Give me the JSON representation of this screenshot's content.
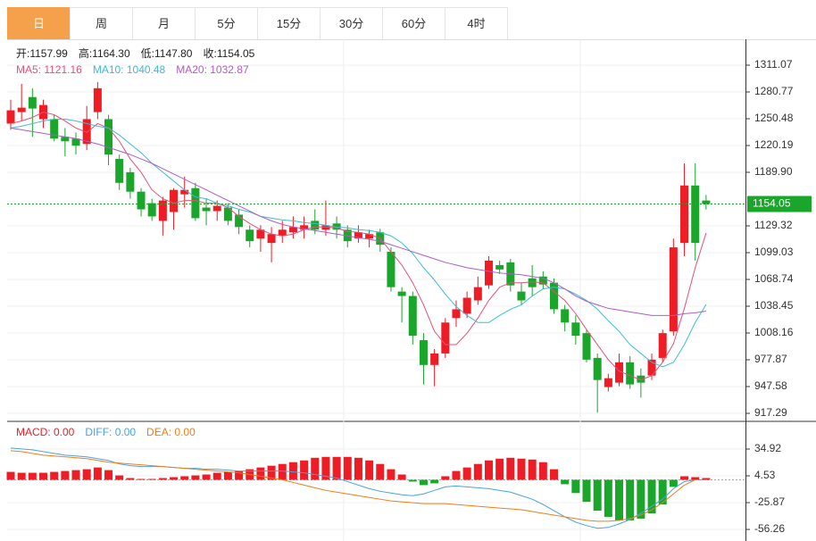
{
  "tabs": [
    "日",
    "周",
    "月",
    "5分",
    "15分",
    "30分",
    "60分",
    "4时"
  ],
  "chart_data": [
    {
      "type": "candlestick",
      "ohlc_labels": [
        {
          "text": "开:1157.99"
        },
        {
          "text": "高:1164.30"
        },
        {
          "text": "低:1147.80"
        },
        {
          "text": "收:1154.05"
        }
      ],
      "up_color": "#ee1c24",
      "down_color": "#19a62b",
      "open": [
        1245,
        1258,
        1275,
        1250,
        1250,
        1230,
        1228,
        1222,
        1258,
        1250,
        1205,
        1190,
        1168,
        1155,
        1135,
        1145,
        1165,
        1172,
        1150,
        1146,
        1150,
        1142,
        1125,
        1115,
        1110,
        1118,
        1122,
        1125,
        1135,
        1125,
        1132,
        1125,
        1115,
        1115,
        1122,
        1100,
        1055,
        1050,
        1000,
        972,
        985,
        1025,
        1030,
        1045,
        1062,
        1085,
        1088,
        1055,
        1070,
        1072,
        1065,
        1035,
        1020,
        1008,
        980,
        947,
        952,
        975,
        960,
        960,
        980,
        1010,
        1110,
        1175,
        1157.99
      ],
      "high": [
        1272,
        1290,
        1285,
        1272,
        1255,
        1240,
        1235,
        1265,
        1292,
        1255,
        1210,
        1195,
        1172,
        1160,
        1162,
        1172,
        1185,
        1178,
        1160,
        1158,
        1155,
        1148,
        1130,
        1130,
        1128,
        1135,
        1140,
        1140,
        1148,
        1158,
        1140,
        1130,
        1130,
        1125,
        1126,
        1105,
        1060,
        1055,
        1008,
        990,
        1025,
        1045,
        1055,
        1072,
        1095,
        1090,
        1092,
        1065,
        1085,
        1078,
        1070,
        1040,
        1028,
        1012,
        985,
        962,
        985,
        982,
        968,
        985,
        1012,
        1115,
        1200,
        1200,
        1164.3
      ],
      "low": [
        1238,
        1248,
        1230,
        1240,
        1225,
        1208,
        1210,
        1215,
        1250,
        1198,
        1170,
        1160,
        1140,
        1135,
        1118,
        1125,
        1150,
        1135,
        1130,
        1135,
        1130,
        1120,
        1105,
        1100,
        1088,
        1110,
        1115,
        1115,
        1120,
        1118,
        1115,
        1105,
        1110,
        1105,
        1100,
        1055,
        1020,
        995,
        950,
        948,
        980,
        1015,
        1025,
        1040,
        1058,
        1075,
        1055,
        1040,
        1050,
        1058,
        1030,
        1010,
        995,
        975,
        918,
        942,
        948,
        945,
        935,
        955,
        975,
        1005,
        1095,
        1090,
        1147.8
      ],
      "close": [
        1260,
        1263,
        1262,
        1266,
        1228,
        1225,
        1220,
        1250,
        1285,
        1210,
        1178,
        1168,
        1148,
        1140,
        1158,
        1170,
        1170,
        1138,
        1146,
        1152,
        1135,
        1128,
        1112,
        1125,
        1120,
        1125,
        1128,
        1130,
        1125,
        1130,
        1125,
        1112,
        1122,
        1120,
        1108,
        1060,
        1050,
        1005,
        972,
        985,
        1020,
        1035,
        1048,
        1060,
        1090,
        1080,
        1062,
        1045,
        1060,
        1063,
        1035,
        1020,
        1005,
        978,
        955,
        957,
        975,
        950,
        952,
        978,
        1008,
        1105,
        1175,
        1110,
        1154.05
      ],
      "series": [
        {
          "name": "MA5: 1121.16",
          "color": "#e5507a",
          "values": [
            1245,
            1248,
            1252,
            1258,
            1255,
            1248,
            1240,
            1235,
            1245,
            1240,
            1225,
            1205,
            1190,
            1170,
            1160,
            1155,
            1158,
            1158,
            1155,
            1155,
            1150,
            1140,
            1132,
            1125,
            1120,
            1118,
            1120,
            1125,
            1128,
            1128,
            1127,
            1123,
            1122,
            1120,
            1115,
            1100,
            1085,
            1065,
            1040,
            1010,
            995,
            995,
            1008,
            1025,
            1045,
            1060,
            1065,
            1065,
            1066,
            1065,
            1055,
            1045,
            1030,
            1012,
            995,
            978,
            965,
            960,
            955,
            960,
            975,
            996,
            1036,
            1082,
            1121.16
          ]
        },
        {
          "name": "MA10: 1040.48",
          "color": "#3bbdd4",
          "values": [
            1240,
            1242,
            1245,
            1248,
            1250,
            1250,
            1248,
            1245,
            1242,
            1240,
            1232,
            1222,
            1212,
            1200,
            1190,
            1180,
            1170,
            1162,
            1160,
            1155,
            1152,
            1148,
            1145,
            1140,
            1138,
            1136,
            1135,
            1133,
            1132,
            1130,
            1128,
            1127,
            1125,
            1124,
            1122,
            1118,
            1110,
            1098,
            1082,
            1068,
            1052,
            1038,
            1028,
            1020,
            1020,
            1028,
            1035,
            1040,
            1050,
            1058,
            1060,
            1058,
            1052,
            1045,
            1035,
            1022,
            1010,
            995,
            985,
            975,
            970,
            975,
            995,
            1020,
            1040.48
          ]
        },
        {
          "name": "MA20: 1032.87",
          "color": "#b05cc5",
          "values": [
            1240,
            1238,
            1236,
            1234,
            1232,
            1230,
            1228,
            1225,
            1222,
            1218,
            1214,
            1210,
            1205,
            1200,
            1194,
            1188,
            1182,
            1176,
            1170,
            1164,
            1158,
            1152,
            1146,
            1140,
            1135,
            1131,
            1128,
            1126,
            1124,
            1122,
            1120,
            1118,
            1116,
            1114,
            1112,
            1108,
            1104,
            1100,
            1096,
            1092,
            1088,
            1085,
            1082,
            1080,
            1078,
            1076,
            1075,
            1074,
            1072,
            1070,
            1065,
            1058,
            1050,
            1044,
            1040,
            1036,
            1034,
            1032,
            1030,
            1028,
            1028,
            1028,
            1030,
            1031,
            1032.87
          ]
        }
      ],
      "ylim": [
        908.2,
        1340.35
      ],
      "yticks": [
        1311.07,
        1280.77,
        1250.48,
        1220.19,
        {
          "value": 1189.9,
          "label": "1189.90"
        },
        1129.32,
        1099.03,
        1068.74,
        1038.45,
        1008.16,
        977.87,
        947.58,
        917.29
      ],
      "grid": true
    },
    {
      "type": "macd",
      "histogram": {
        "name": "MACD: 0.00",
        "color": "#ee1c24",
        "negative_color": "#19a62b",
        "values": [
          9,
          8,
          8,
          8,
          9,
          10,
          11,
          12,
          14,
          11,
          5,
          2,
          1,
          1,
          2,
          3,
          4,
          5,
          6,
          8,
          9,
          10,
          12,
          14,
          16,
          18,
          20,
          22,
          25,
          26,
          26,
          26,
          25,
          22,
          18,
          12,
          6,
          -2,
          -6,
          -4,
          4,
          10,
          14,
          18,
          22,
          24,
          25,
          24,
          23,
          20,
          12,
          -5,
          -15,
          -25,
          -35,
          -42,
          -46,
          -46,
          -44,
          -38,
          -28,
          -8,
          4,
          3,
          2
        ]
      },
      "series": [
        {
          "name": "DIFF: 0.00",
          "color": "#4aa3df",
          "values": [
            36,
            35,
            34,
            32,
            30,
            28,
            27,
            26,
            24,
            22,
            18,
            16,
            15,
            15,
            15,
            14,
            13,
            13,
            12,
            12,
            11,
            10,
            10,
            10,
            10,
            10,
            9,
            8,
            6,
            4,
            2,
            -2,
            -6,
            -10,
            -13,
            -15,
            -17,
            -18,
            -16,
            -12,
            -8,
            -7,
            -8,
            -9,
            -10,
            -12,
            -14,
            -18,
            -22,
            -28,
            -35,
            -42,
            -48,
            -52,
            -55,
            -54,
            -50,
            -45,
            -38,
            -30,
            -22,
            -10,
            -2,
            0,
            0
          ]
        },
        {
          "name": "DEA: 0.00",
          "color": "#f07d1a",
          "values": [
            33,
            32,
            30,
            28,
            27,
            26,
            25,
            24,
            22,
            20,
            19,
            18,
            17,
            16,
            15,
            14,
            13,
            12,
            11,
            10,
            9,
            8,
            6,
            4,
            2,
            0,
            -3,
            -6,
            -9,
            -12,
            -14,
            -16,
            -18,
            -20,
            -22,
            -24,
            -25,
            -26,
            -27,
            -27,
            -27,
            -28,
            -29,
            -30,
            -31,
            -32,
            -33,
            -34,
            -36,
            -38,
            -40,
            -42,
            -44,
            -46,
            -47,
            -47,
            -46,
            -44,
            -40,
            -34,
            -26,
            -16,
            -6,
            0,
            0
          ]
        }
      ],
      "ylim": [
        -69.4,
        66.3
      ],
      "yticks": [
        34.92,
        4.53,
        -25.87,
        -56.26
      ],
      "grid": true
    }
  ]
}
